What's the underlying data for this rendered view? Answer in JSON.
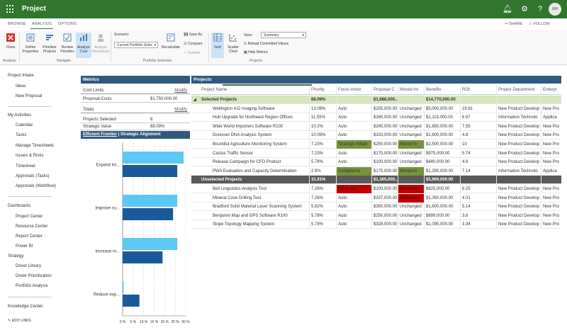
{
  "app": {
    "title": "Project",
    "user_initials": "MM"
  },
  "topbar_icons": [
    "bell-icon",
    "gear-icon",
    "help-icon"
  ],
  "ribbon": {
    "tabs": [
      "BROWSE",
      "ANALYSIS",
      "OPTIONS"
    ],
    "active_tab": "ANALYSIS",
    "share_label": "SHARE",
    "follow_label": "FOLLOW",
    "buttons": {
      "close": "Close",
      "define": "Define Properties",
      "prioritize": "Prioritize Projects",
      "review": "Review Priorities",
      "analyze_cost": "Analyze Cost",
      "analyze_resources": "Analyze Resources",
      "recalculate": "Recalculate",
      "save_as": "Save As",
      "compare": "Compare",
      "commit": "Commit",
      "grid": "Grid",
      "scatter": "Scatter Chart",
      "view_label": "View:",
      "view_value": "Summary",
      "reload": "Reload Committed Values",
      "hide_metrics": "Hide Metrics"
    },
    "scenario_label": "Scenario:",
    "scenario_value": "Current Portfolio Selec",
    "groups": {
      "analysis": "Analysis",
      "navigate": "Navigate",
      "portfolio": "Portfolio Selection",
      "projects": "Projects"
    }
  },
  "nav": {
    "sections": [
      {
        "label": "Project Intake",
        "items": [
          "Ideas",
          "New Proposal"
        ]
      },
      {
        "label": "My Activities",
        "items": [
          "Calendar",
          "Tasks",
          "Manage Timesheets",
          "Issues & Risks",
          "Timesheet",
          "Approvals (Tasks)",
          "Approvals (Workflow)"
        ]
      },
      {
        "label": "Dashboards",
        "items": [
          "Project Center",
          "Resource Center",
          "Report Center",
          "Power BI"
        ]
      },
      {
        "label": "Strategy",
        "items": [
          "Driver Library",
          "Driver Prioritization",
          "Portfolio Analysis"
        ]
      },
      {
        "label": "Knowledge Center",
        "items": []
      }
    ],
    "edit_links": "EDIT LINKS"
  },
  "metrics": {
    "header": "Metrics",
    "cost_limits_label": "Cost Limits",
    "modify_label": "Modify",
    "proposal_costs_label": "Proposal Costs",
    "proposal_costs_value": "$1,750,000.00",
    "totals_label": "Totals",
    "projects_selected_label": "Projects Selected",
    "projects_selected_value": "8",
    "strategic_value_label": "Strategic Value",
    "strategic_value_value": "68.09%",
    "tab_efficient": "Efficient Frontier",
    "tab_divider": "|",
    "tab_strategic": "Strategic Alignment"
  },
  "chart_data": {
    "type": "bar",
    "categories": [
      "Expand int...",
      "Improve cu...",
      "Increase m...",
      "Reduce exp..."
    ],
    "series": [
      {
        "values": [
          29,
          26,
          26,
          0.5
        ],
        "color": "#5bc8f5"
      },
      {
        "values": [
          26,
          24,
          19,
          8
        ],
        "color": "#1a5a9a"
      }
    ],
    "xticks": [
      "0 %",
      "5 %",
      "10 %",
      "15 %",
      "20 %",
      "25 %",
      "30 %"
    ],
    "xlim": [
      0,
      30
    ],
    "grid": true
  },
  "projects": {
    "header": "Projects",
    "columns": [
      "Project Name",
      "Priority",
      "Force In/out",
      "Proposal C",
      "Moved In/",
      "Benefits",
      "ROI",
      "Project Department",
      "Enterpr"
    ],
    "rows": [
      {
        "kind": "group-selected",
        "cells": [
          "Selected Projects",
          "68.09%",
          "",
          "$1,688,000...",
          "",
          "$14,770,000.00",
          "",
          "",
          ""
        ]
      },
      {
        "kind": "row",
        "cells": [
          "Wellington 4-D Imaging Software",
          "13.08%",
          "Auto",
          "$255,000.00",
          "Unchanged",
          "$5,000,000.00",
          "19.61",
          "New Product Develop",
          "New Pro"
        ]
      },
      {
        "kind": "row",
        "cells": [
          "Hub Upgrade for Northeast Region Offices",
          "11.55%",
          "Auto",
          "$160,000.00",
          "Unchanged",
          "$1,115,000.00",
          "6.97",
          "Information Technolo",
          "Applica"
        ]
      },
      {
        "kind": "row",
        "cells": [
          "Wide World Importers Software R100",
          "10.2%",
          "Auto",
          "$245,000.00",
          "Unchanged",
          "$1,850,000.00",
          "7.55",
          "New Product Develop",
          "New Pro"
        ]
      },
      {
        "kind": "row",
        "cells": [
          "Donovan DNA Analysis System",
          "10.09%",
          "Auto",
          "$333,000.00",
          "Unchanged",
          "$1,600,000.00",
          "4.8",
          "New Product Develop",
          "New Pro"
        ]
      },
      {
        "kind": "row",
        "cells": [
          "Bountiful Agriculture Monitoring System",
          "7.23%",
          "Strategic Initiati",
          "$250,000.00",
          "Moved in",
          "$2,500,000.00",
          "10",
          "New Product Develop",
          "New Pro"
        ],
        "hl": [
          2,
          4
        ],
        "hl_color": "green"
      },
      {
        "kind": "row",
        "cells": [
          "Cactus Traffic Sensor",
          "7.23%",
          "Auto",
          "$170,000.00",
          "Unchanged",
          "$975,000.00",
          "5.74",
          "New Product Develop",
          "New Pro"
        ]
      },
      {
        "kind": "row",
        "cells": [
          "Release Campaign for CFO Product",
          "5.78%",
          "Auto",
          "$100,000.00",
          "Unchanged",
          "$480,000.00",
          "4.8",
          "New Product Develop",
          "New Pro"
        ]
      },
      {
        "kind": "row",
        "cells": [
          "PWA Evaluation and Capacity Determination",
          "2.9%",
          "Compliance",
          "$175,000.00",
          "Moved in",
          "$1,250,000.00",
          "7.14",
          "Information Technolo",
          "Applica"
        ],
        "hl": [
          2,
          4
        ],
        "hl_color": "green"
      },
      {
        "kind": "group-unselected",
        "cells": [
          "Unselected Projects",
          "31.91%",
          "",
          "$1,365,000...",
          "",
          "$5,969,000.00",
          "",
          "",
          ""
        ]
      },
      {
        "kind": "row",
        "cells": [
          "Bell Linguistics Analysis Tool",
          "7.26%",
          "Force out",
          "$100,000.00",
          "Moved out",
          "$825,000.00",
          "8.25",
          "New Product Develop",
          "New Pro"
        ],
        "hl": [
          2,
          4
        ],
        "hl_color": "red"
      },
      {
        "kind": "row",
        "cells": [
          "Mineral Cove Drilling Tool",
          "7.26%",
          "Auto",
          "$337,000.00",
          "Moved out",
          "$1,350,000.00",
          "4.01",
          "New Product Develop",
          "New Pro"
        ],
        "hl": [
          4
        ],
        "hl_color": "red"
      },
      {
        "kind": "row",
        "cells": [
          "Bradford Solid Material Laser Scanning System",
          "5.82%",
          "Auto",
          "$350,000.00",
          "Unchanged",
          "$1,800,000.00",
          "5.14",
          "New Product Develop",
          "New Pro"
        ]
      },
      {
        "kind": "row",
        "cells": [
          "Benjamin Map and GPS Software R100",
          "5.78%",
          "Auto",
          "$250,000.00",
          "Unchanged",
          "$899,000.00",
          "3.6",
          "New Product Develop",
          "New Pro"
        ]
      },
      {
        "kind": "row",
        "cells": [
          "Slope Topology Mapping System",
          "5.78%",
          "Auto",
          "$328,000.00",
          "Unchanged",
          "$1,095,000.00",
          "3.34",
          "New Product Develop",
          "New Pro"
        ]
      }
    ]
  }
}
